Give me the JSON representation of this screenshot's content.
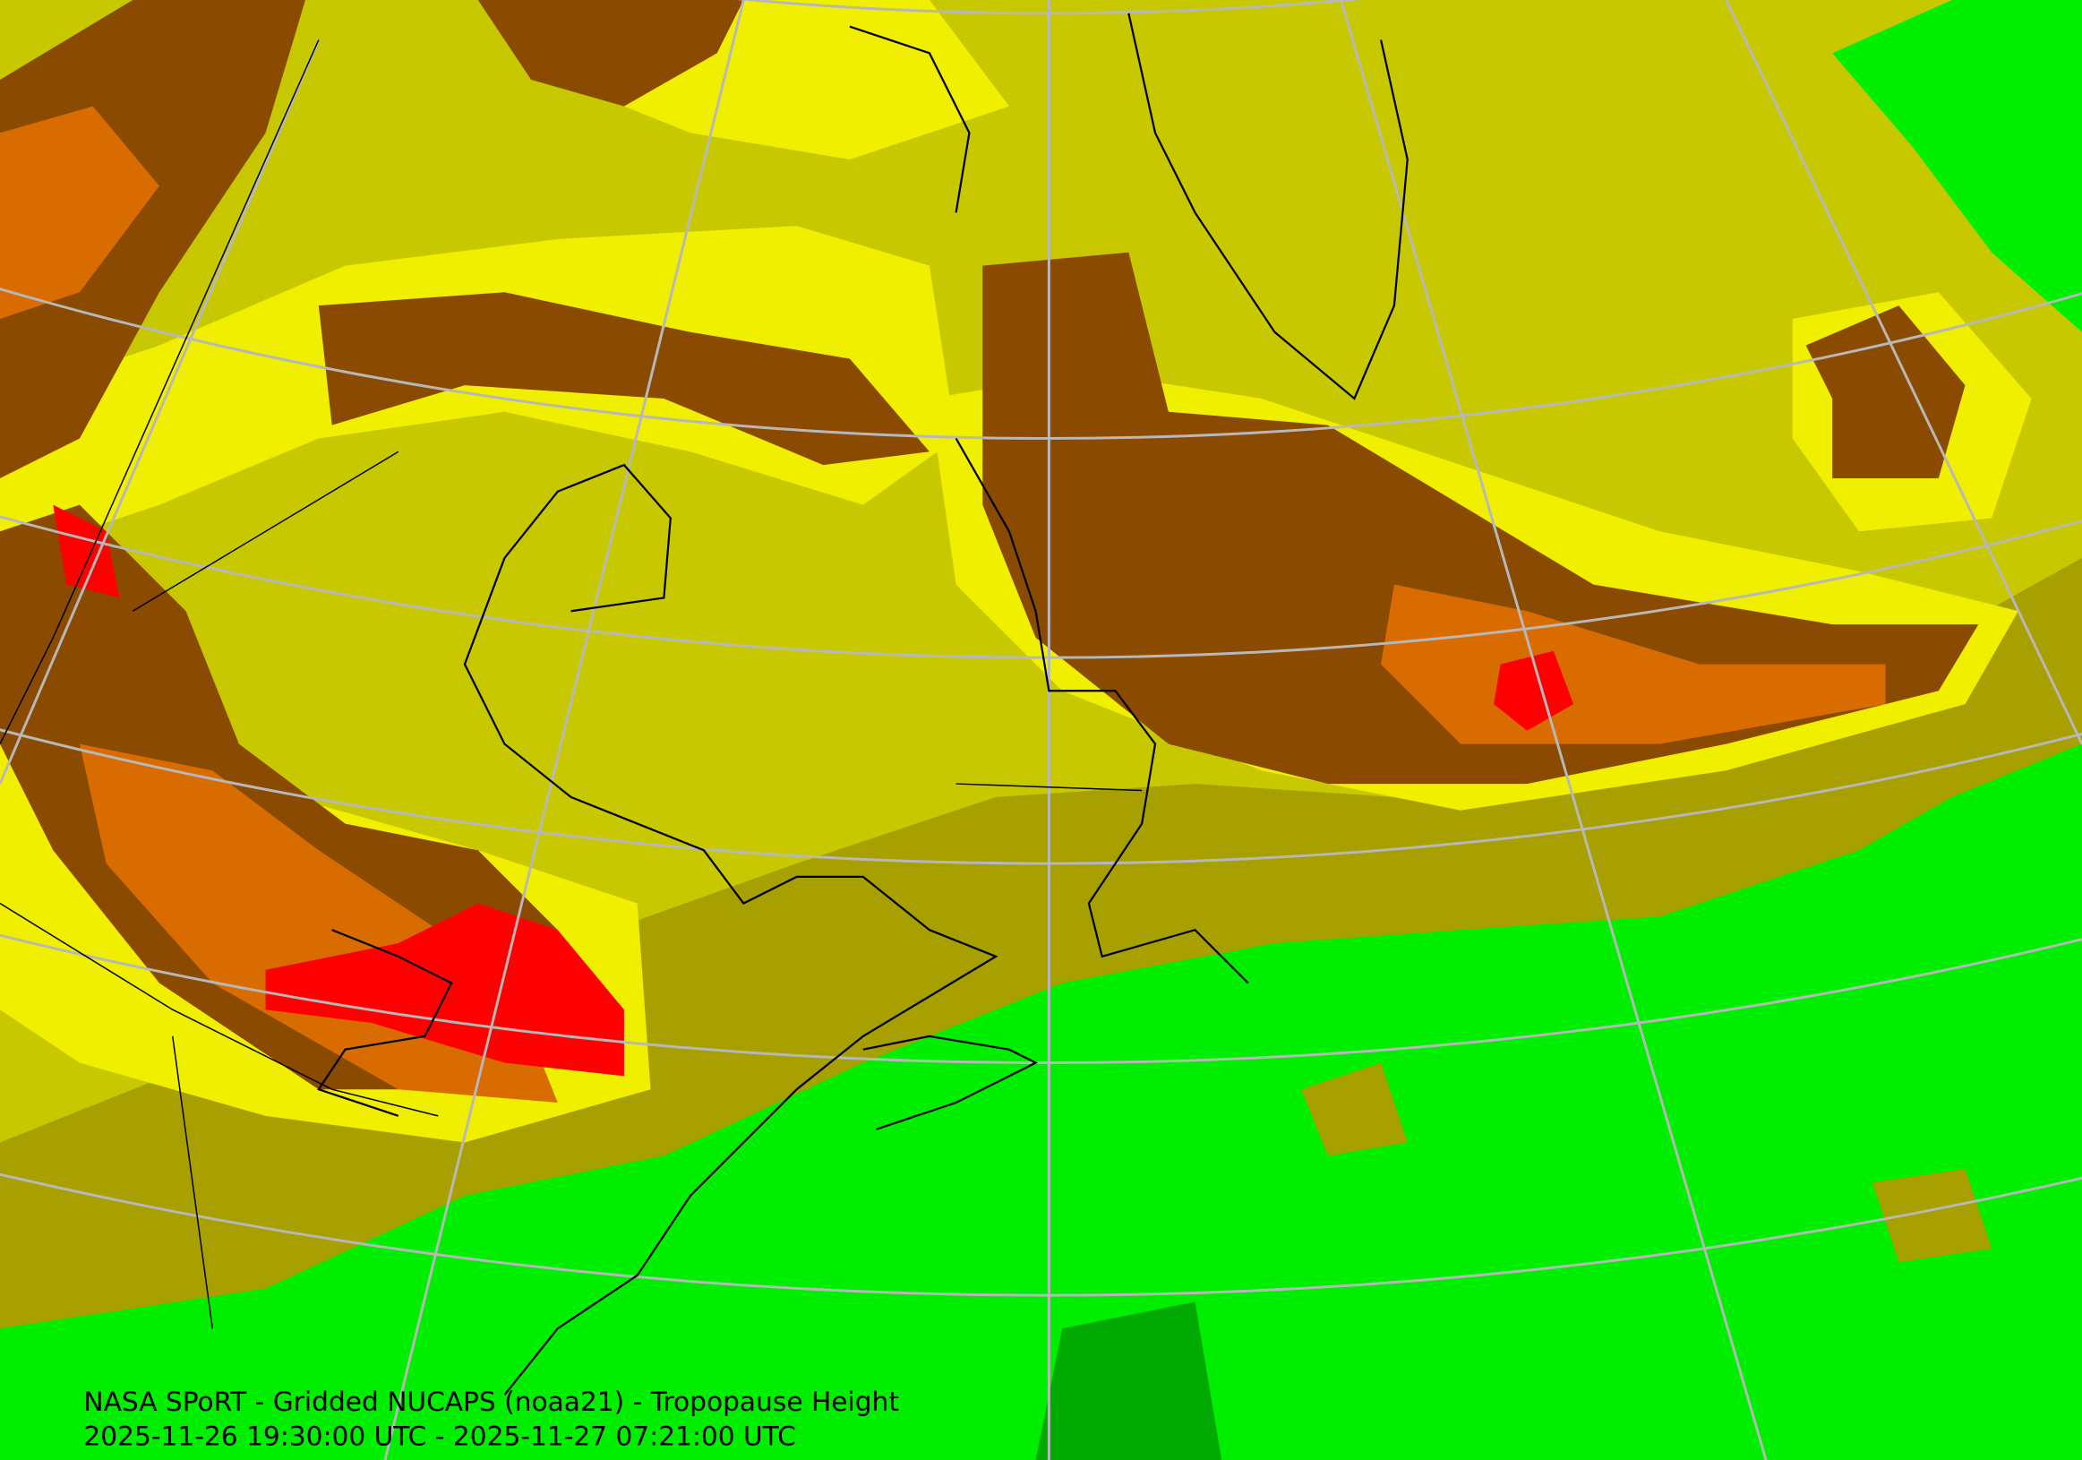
{
  "map": {
    "title": "NASA SPoRT - Gridded NUCAPS (noaa21) - Tropopause Height",
    "time_range": "2025-11-26 19:30:00 UTC - 2025-11-27 07:21:00 UTC"
  }
}
